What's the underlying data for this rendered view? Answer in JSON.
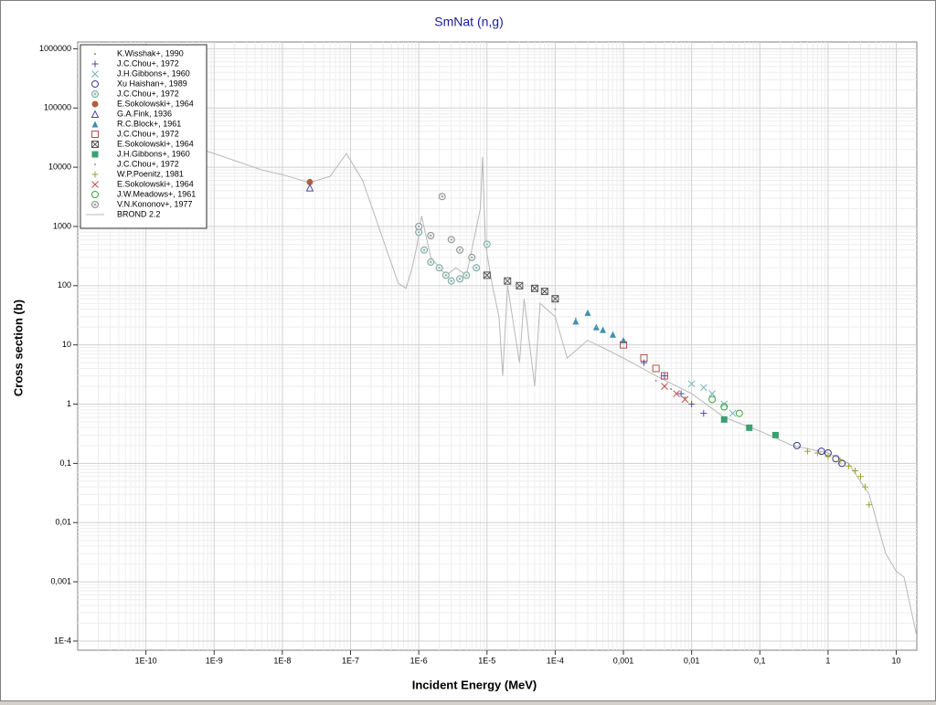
{
  "chart_data": {
    "type": "scatter",
    "title": "SmNat (n,g)",
    "x_label": "Incident Energy (MeV)",
    "y_label": "Cross section (b)",
    "x_log": true,
    "y_log": true,
    "grid": true,
    "legend": "upper-left",
    "xlim": [
      1e-11,
      20
    ],
    "ylim": [
      7e-05,
      1300000
    ],
    "xticks": [
      {
        "value": 1e-10,
        "label": "1E-10"
      },
      {
        "value": 1e-09,
        "label": "1E-9"
      },
      {
        "value": 1e-08,
        "label": "1E-8"
      },
      {
        "value": 1e-07,
        "label": "1E-7"
      },
      {
        "value": 1e-06,
        "label": "1E-6"
      },
      {
        "value": 1e-05,
        "label": "1E-5"
      },
      {
        "value": 0.0001,
        "label": "1E-4"
      },
      {
        "value": 0.001,
        "label": "0,001"
      },
      {
        "value": 0.01,
        "label": "0,01"
      },
      {
        "value": 0.1,
        "label": "0,1"
      },
      1,
      10
    ],
    "yticks": [
      1000000,
      100000,
      10000,
      1000,
      100,
      10,
      1,
      {
        "value": 0.1,
        "label": "0,1"
      },
      {
        "value": 0.01,
        "label": "0,01"
      },
      {
        "value": 0.001,
        "label": "0,001"
      },
      {
        "value": 0.0001,
        "label": "1E-4"
      }
    ],
    "series": [
      {
        "name": "K.Wisshak+, 1990",
        "color": "#8a8a8a",
        "marker": "dot",
        "x": [
          0.003,
          0.005,
          0.008
        ],
        "values": [
          2.5,
          1.8,
          1.3
        ]
      },
      {
        "name": "J.C.Chou+, 1972",
        "color": "#4b4b9b",
        "marker": "plus",
        "x": [
          0.002,
          0.004,
          0.007,
          0.01,
          0.015
        ],
        "values": [
          5,
          3,
          1.5,
          1,
          0.7
        ]
      },
      {
        "name": "J.H.Gibbons+, 1960",
        "color": "#6fb5b5",
        "marker": "x",
        "x": [
          0.01,
          0.015,
          0.02,
          0.03,
          0.04
        ],
        "values": [
          2.2,
          1.9,
          1.5,
          1.0,
          0.7
        ]
      },
      {
        "name": "Xu Haishan+, 1989",
        "color": "#3a3a8c",
        "marker": "circle",
        "x": [
          0.35,
          0.8,
          1.0,
          1.3,
          1.6
        ],
        "values": [
          0.2,
          0.16,
          0.15,
          0.12,
          0.1
        ]
      },
      {
        "name": "J.C.Chou+, 1972",
        "color": "#7aa7a0",
        "marker": "dotted-circle",
        "x": [
          1e-06,
          1.2e-06,
          1.5e-06,
          2e-06,
          2.5e-06,
          3e-06,
          4e-06,
          5e-06,
          7e-06,
          1e-05
        ],
        "values": [
          800,
          400,
          250,
          200,
          150,
          120,
          130,
          150,
          200,
          500
        ]
      },
      {
        "name": "E.Sokolowski+, 1964",
        "color": "#b0603a",
        "marker": "filled-circle",
        "x": [
          2.53e-08
        ],
        "values": [
          5600
        ]
      },
      {
        "name": "G.A.Fink, 1936",
        "color": "#4b4b9b",
        "marker": "triangle",
        "x": [
          2.53e-08
        ],
        "values": [
          4500
        ]
      },
      {
        "name": "R.C.Block+, 1961",
        "color": "#3f8fb0",
        "marker": "filled-triangle",
        "x": [
          0.0002,
          0.0003,
          0.0004,
          0.0005,
          0.0007,
          0.001
        ],
        "values": [
          25,
          35,
          20,
          18,
          15,
          12
        ]
      },
      {
        "name": "J.C.Chou+, 1972",
        "color": "#b05050",
        "marker": "square",
        "x": [
          0.001,
          0.002,
          0.003,
          0.004
        ],
        "values": [
          10,
          6,
          4,
          3
        ]
      },
      {
        "name": "E.Sokolowski+, 1964",
        "color": "#555555",
        "marker": "boxed-x",
        "x": [
          1e-05,
          2e-05,
          3e-05,
          5e-05,
          7e-05,
          0.0001
        ],
        "values": [
          150,
          120,
          100,
          90,
          80,
          60
        ]
      },
      {
        "name": "J.H.Gibbons+, 1960",
        "color": "#3aa070",
        "marker": "filled-square",
        "x": [
          0.03,
          0.07,
          0.17
        ],
        "values": [
          0.55,
          0.4,
          0.3
        ]
      },
      {
        "name": "J.C.Chou+, 1972",
        "color": "#999999",
        "marker": "dot",
        "x": [
          0.0001,
          0.0002,
          0.0004
        ],
        "values": [
          40,
          28,
          20
        ]
      },
      {
        "name": "W.P.Poenitz, 1981",
        "color": "#a0a030",
        "marker": "plus",
        "x": [
          0.5,
          0.7,
          1.0,
          1.5,
          2.0,
          2.5,
          3,
          3.5,
          4
        ],
        "values": [
          0.16,
          0.15,
          0.13,
          0.11,
          0.09,
          0.075,
          0.06,
          0.04,
          0.02
        ]
      },
      {
        "name": "E.Sokolowski+, 1964",
        "color": "#c05050",
        "marker": "x",
        "x": [
          0.004,
          0.006,
          0.008
        ],
        "values": [
          2,
          1.5,
          1.2
        ]
      },
      {
        "name": "J.W.Meadows+, 1961",
        "color": "#40a040",
        "marker": "circle",
        "x": [
          0.02,
          0.03,
          0.05
        ],
        "values": [
          1.2,
          0.9,
          0.7
        ]
      },
      {
        "name": "V.N.Kononov+, 1977",
        "color": "#909090",
        "marker": "dotted-circle",
        "x": [
          1e-06,
          1.5e-06,
          2.2e-06,
          3e-06,
          4e-06,
          6e-06
        ],
        "values": [
          1000,
          700,
          3200,
          600,
          400,
          300
        ]
      },
      {
        "name": "BROND 2.2",
        "color": "#b8b8b8",
        "marker": "line",
        "x": [
          5e-10,
          1e-09,
          5e-09,
          1e-08,
          2.5e-08,
          5e-08,
          8.7e-08,
          1.5e-07,
          3e-07,
          5e-07,
          6.5e-07,
          8e-07,
          9.5e-07,
          1.1e-06,
          1.5e-06,
          2.5e-06,
          3.5e-06,
          5e-06,
          8e-06,
          8.6e-06,
          9.5e-06,
          1.2e-05,
          1.5e-05,
          1.7e-05,
          2e-05,
          3e-05,
          3.5e-05,
          5e-05,
          6e-05,
          0.0001,
          0.00015,
          0.0003,
          0.001,
          0.003,
          0.01,
          0.03,
          0.1,
          0.3,
          1,
          2,
          4,
          7,
          10,
          13,
          20
        ],
        "values": [
          22000,
          17000,
          9000,
          7500,
          5500,
          7000,
          17000,
          6000,
          600,
          110,
          90,
          200,
          500,
          1500,
          300,
          150,
          200,
          150,
          2000,
          15000,
          500,
          100,
          30,
          3,
          100,
          5,
          60,
          2,
          50,
          30,
          6,
          12,
          6,
          3,
          1.5,
          0.6,
          0.35,
          0.2,
          0.15,
          0.1,
          0.03,
          0.003,
          0.0015,
          0.0012,
          0.00012
        ]
      }
    ]
  }
}
